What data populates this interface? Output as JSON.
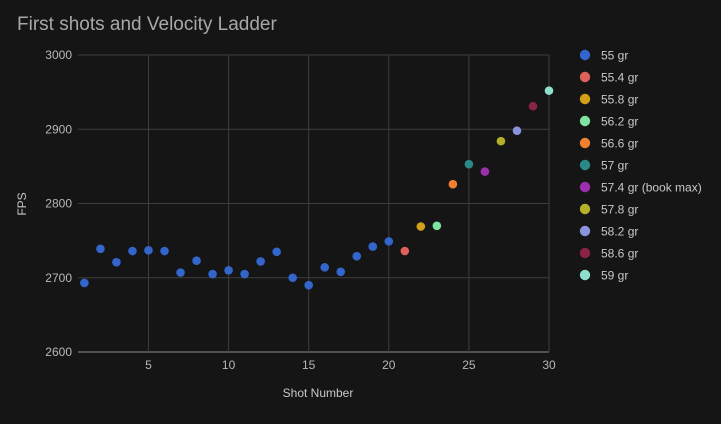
{
  "chart_data": {
    "type": "scatter",
    "title": "First shots and Velocity Ladder",
    "xlabel": "Shot Number",
    "ylabel": "FPS",
    "xlim": [
      0.6,
      30
    ],
    "ylim": [
      2600,
      3000
    ],
    "xticks": [
      5,
      10,
      15,
      20,
      25,
      30
    ],
    "yticks": [
      2600,
      2700,
      2800,
      2900,
      3000
    ],
    "grid": true,
    "legend_position": "right",
    "series": [
      {
        "name": "55 gr",
        "color": "#3366cc",
        "points": [
          [
            1,
            2693
          ],
          [
            2,
            2739
          ],
          [
            3,
            2721
          ],
          [
            4,
            2736
          ],
          [
            5,
            2737
          ],
          [
            6,
            2736
          ],
          [
            7,
            2707
          ],
          [
            8,
            2723
          ],
          [
            9,
            2705
          ],
          [
            10,
            2710
          ],
          [
            11,
            2705
          ],
          [
            12,
            2722
          ],
          [
            13,
            2735
          ],
          [
            14,
            2700
          ],
          [
            15,
            2690
          ],
          [
            16,
            2714
          ],
          [
            17,
            2708
          ],
          [
            18,
            2729
          ],
          [
            19,
            2742
          ],
          [
            20,
            2749
          ]
        ]
      },
      {
        "name": "55.4 gr",
        "color": "#e0605a",
        "points": [
          [
            21,
            2736
          ]
        ]
      },
      {
        "name": "55.8 gr",
        "color": "#d4a017",
        "points": [
          [
            22,
            2769
          ]
        ]
      },
      {
        "name": "56.2 gr",
        "color": "#7ee2a0",
        "points": [
          [
            23,
            2770
          ]
        ]
      },
      {
        "name": "56.6 gr",
        "color": "#f08030",
        "points": [
          [
            24,
            2826
          ]
        ]
      },
      {
        "name": "57 gr",
        "color": "#2a8a8a",
        "points": [
          [
            25,
            2853
          ]
        ]
      },
      {
        "name": "57.4 gr (book max)",
        "color": "#9b2fae",
        "points": [
          [
            26,
            2843
          ]
        ]
      },
      {
        "name": "57.8 gr",
        "color": "#b5b02a",
        "points": [
          [
            27,
            2884
          ]
        ]
      },
      {
        "name": "58.2 gr",
        "color": "#8a92dd",
        "points": [
          [
            28,
            2898
          ]
        ]
      },
      {
        "name": "58.6 gr",
        "color": "#8b2247",
        "points": [
          [
            29,
            2931
          ]
        ]
      },
      {
        "name": "59 gr",
        "color": "#8ee0cc",
        "points": [
          [
            30,
            2952
          ]
        ]
      }
    ]
  }
}
